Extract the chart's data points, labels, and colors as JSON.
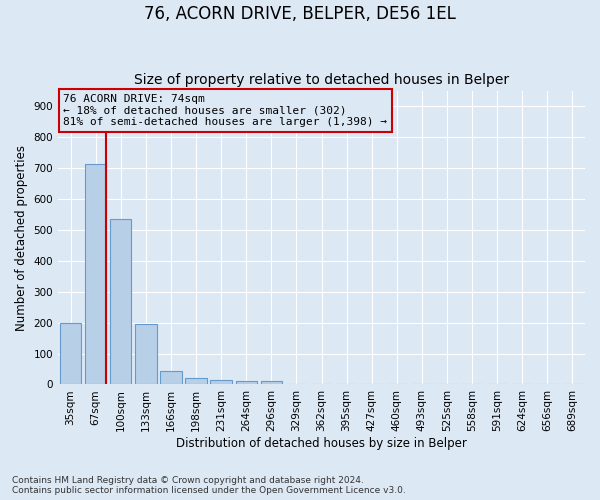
{
  "title": "76, ACORN DRIVE, BELPER, DE56 1EL",
  "subtitle": "Size of property relative to detached houses in Belper",
  "xlabel": "Distribution of detached houses by size in Belper",
  "ylabel": "Number of detached properties",
  "categories": [
    "35sqm",
    "67sqm",
    "100sqm",
    "133sqm",
    "166sqm",
    "198sqm",
    "231sqm",
    "264sqm",
    "296sqm",
    "329sqm",
    "362sqm",
    "395sqm",
    "427sqm",
    "460sqm",
    "493sqm",
    "525sqm",
    "558sqm",
    "591sqm",
    "624sqm",
    "656sqm",
    "689sqm"
  ],
  "values": [
    200,
    715,
    535,
    195,
    42,
    20,
    15,
    12,
    10,
    0,
    0,
    0,
    0,
    0,
    0,
    0,
    0,
    0,
    0,
    0,
    0
  ],
  "bar_color": "#b8cfe8",
  "bar_edge_color": "#6699cc",
  "property_line_color": "#cc0000",
  "annotation_text": "76 ACORN DRIVE: 74sqm\n← 18% of detached houses are smaller (302)\n81% of semi-detached houses are larger (1,398) →",
  "annotation_box_color": "#cc0000",
  "ylim": [
    0,
    950
  ],
  "yticks": [
    0,
    100,
    200,
    300,
    400,
    500,
    600,
    700,
    800,
    900
  ],
  "footnote": "Contains HM Land Registry data © Crown copyright and database right 2024.\nContains public sector information licensed under the Open Government Licence v3.0.",
  "bg_color": "#dde8f5",
  "grid_color": "#ffffff",
  "title_fontsize": 12,
  "subtitle_fontsize": 10,
  "axis_label_fontsize": 8.5,
  "tick_fontsize": 7.5,
  "annot_fontsize": 8
}
